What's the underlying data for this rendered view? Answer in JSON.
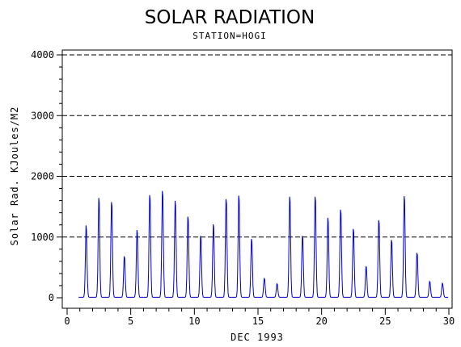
{
  "chart_data": {
    "type": "line",
    "title": "SOLAR RADIATION",
    "subtitle": "STATION=HOGI",
    "xlabel": "DEC 1993",
    "ylabel": "Solar Rad. KJoules/M2",
    "xlim": [
      0,
      30
    ],
    "ylim": [
      0,
      4000
    ],
    "x_ticks": [
      0,
      5,
      10,
      15,
      20,
      25,
      30
    ],
    "y_ticks": [
      0,
      1000,
      2000,
      3000,
      4000
    ],
    "y_gridlines": [
      1000,
      2000,
      3000,
      4000
    ],
    "grid_style": "dashed horizontal",
    "series_color": "#0000cc",
    "daily_peaks": [
      {
        "day": 1,
        "peak": 1230,
        "mid": 1150
      },
      {
        "day": 2,
        "peak": 1700
      },
      {
        "day": 3,
        "peak": 1630
      },
      {
        "day": 4,
        "peak": 700
      },
      {
        "day": 5,
        "peak": 1150
      },
      {
        "day": 6,
        "peak": 1750
      },
      {
        "day": 7,
        "peak": 1820
      },
      {
        "day": 8,
        "peak": 1650
      },
      {
        "day": 9,
        "peak": 1380
      },
      {
        "day": 10,
        "peak": 1050
      },
      {
        "day": 11,
        "peak": 1250
      },
      {
        "day": 12,
        "peak": 1680
      },
      {
        "day": 13,
        "peak": 1740
      },
      {
        "day": 14,
        "peak": 1000
      },
      {
        "day": 15,
        "peak": 320
      },
      {
        "day": 16,
        "peak": 230
      },
      {
        "day": 17,
        "peak": 1720
      },
      {
        "day": 18,
        "peak": 1050
      },
      {
        "day": 19,
        "peak": 1720
      },
      {
        "day": 20,
        "peak": 1360
      },
      {
        "day": 21,
        "peak": 1500
      },
      {
        "day": 22,
        "peak": 1170
      },
      {
        "day": 23,
        "peak": 530
      },
      {
        "day": 24,
        "peak": 1320
      },
      {
        "day": 25,
        "peak": 980
      },
      {
        "day": 26,
        "peak": 1730
      },
      {
        "day": 27,
        "peak": 760
      },
      {
        "day": 28,
        "peak": 270
      },
      {
        "day": 29,
        "peak": 240
      }
    ]
  }
}
